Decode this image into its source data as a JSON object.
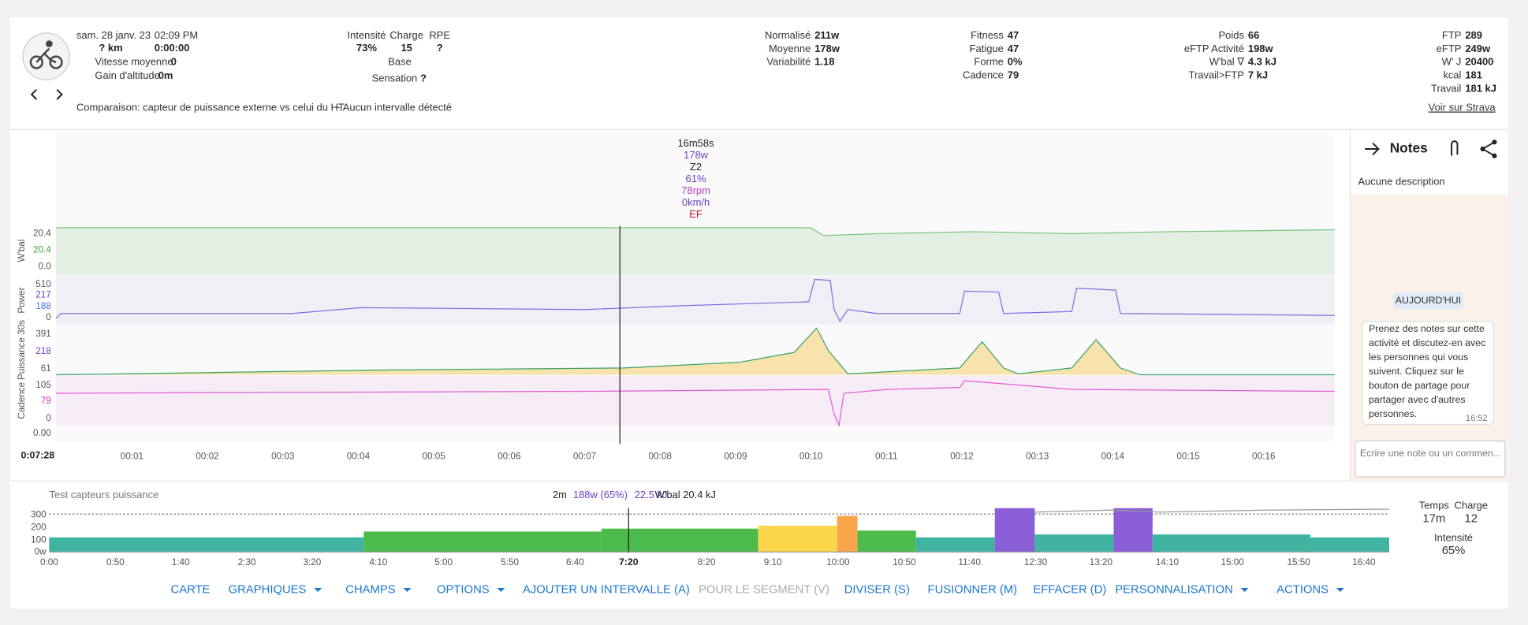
{
  "header": {
    "date": "sam. 28 janv. 23",
    "time": "02:09 PM",
    "distance": "? km",
    "duration": "0:00:00",
    "stats_left": [
      {
        "label": "Vitesse moyenne",
        "value": "0"
      },
      {
        "label": "Gain d'altitude",
        "value": "0m"
      }
    ],
    "intensity": {
      "label": "Intensité",
      "value": "73%"
    },
    "load": {
      "label": "Charge",
      "value": "15"
    },
    "rpe": {
      "label": "RPE",
      "value": "?"
    },
    "base": "Base",
    "feel": {
      "label": "Sensation",
      "value": "?"
    },
    "columns": [
      [
        {
          "label": "Normalisé",
          "value": "211w"
        },
        {
          "label": "Moyenne",
          "value": "178w"
        },
        {
          "label": "Variabilité",
          "value": "1.18"
        }
      ],
      [
        {
          "label": "Fitness",
          "value": "47"
        },
        {
          "label": "Fatigue",
          "value": "47"
        },
        {
          "label": "Forme",
          "value": "0%"
        },
        {
          "label": "Cadence",
          "value": "79"
        }
      ],
      [
        {
          "label": "Poids",
          "value": "66"
        },
        {
          "label": "eFTP Activité",
          "value": "198w"
        },
        {
          "label": "W'bal ∇",
          "value": "4.3 kJ"
        },
        {
          "label": "Travail>FTP",
          "value": "7 kJ"
        }
      ],
      [
        {
          "label": "FTP",
          "value": "289"
        },
        {
          "label": "eFTP",
          "value": "249w"
        },
        {
          "label": "W' J",
          "value": "20400"
        },
        {
          "label": "kcal",
          "value": "181"
        },
        {
          "label": "Travail",
          "value": "181 kJ"
        }
      ]
    ],
    "comparison": "Comparaison: capteur de puissance externe vs celui du HT",
    "intervals": "~ Aucun intervalle détecté",
    "strava": "Voir sur Strava"
  },
  "chart": {
    "tooltip": [
      "16m58s",
      "178w",
      "Z2",
      "61%",
      "78rpm",
      "0km/h",
      "EF"
    ],
    "panels": [
      {
        "label": "W'bal",
        "ticks": [
          "20.4",
          "20.4",
          "0.0"
        ]
      },
      {
        "label": "Power",
        "ticks": [
          "510",
          "217",
          "188",
          "0"
        ]
      },
      {
        "label": "Puissance 30s",
        "ticks": [
          "391",
          "218",
          "61"
        ]
      },
      {
        "label": "Cadence",
        "ticks": [
          "105",
          "79",
          "0"
        ]
      }
    ],
    "extra_tick": "0.00",
    "cursor": "0:07:28",
    "xticks": [
      "00:01",
      "00:02",
      "00:03",
      "00:04",
      "00:05",
      "00:06",
      "00:07",
      "00:08",
      "00:09",
      "00:10",
      "00:11",
      "00:12",
      "00:13",
      "00:14",
      "00:15",
      "00:16"
    ]
  },
  "notes": {
    "title": "Notes",
    "description": "Aucune description",
    "day": "AUJOURD'HUI",
    "message_lines": [
      "Prenez des notes sur cette",
      "activité et discutez-en avec",
      "les personnes qui vous",
      "suivent. Cliquez sur le",
      "bouton de partage pour",
      "partager avec d'autres",
      "personnes."
    ],
    "message_time": "16:52",
    "placeholder": "Ecrire une note ou un commen..."
  },
  "overview": {
    "title": "Test capteurs puissance",
    "summary": [
      "2m",
      "188w (65%)",
      "22.5 kJ",
      "W'bal 20.4 kJ"
    ],
    "yticks": [
      "300",
      "200",
      "100",
      "0w"
    ],
    "xticks": [
      "0:00",
      "0:50",
      "1:40",
      "2:30",
      "3:20",
      "4:10",
      "5:00",
      "5:50",
      "6:40",
      "8:20",
      "9:10",
      "10:00",
      "10:50",
      "11:40",
      "12:30",
      "13:20",
      "14:10",
      "15:00",
      "15:50",
      "16:40"
    ],
    "cursor": "7:20",
    "stats": [
      {
        "label": "Temps",
        "value": "17m"
      },
      {
        "label": "Charge",
        "value": "12"
      },
      {
        "label": "Intensité",
        "value": "65%"
      }
    ]
  },
  "toolbar": [
    "CARTE",
    "GRAPHIQUES",
    "CHAMPS",
    "OPTIONS",
    "AJOUTER UN INTERVALLE (A)",
    "POUR LE SEGMENT (V)",
    "DIVISER (S)",
    "FUSIONNER (M)",
    "EFFACER (D)",
    "PERSONNALISATION",
    "ACTIONS"
  ]
}
